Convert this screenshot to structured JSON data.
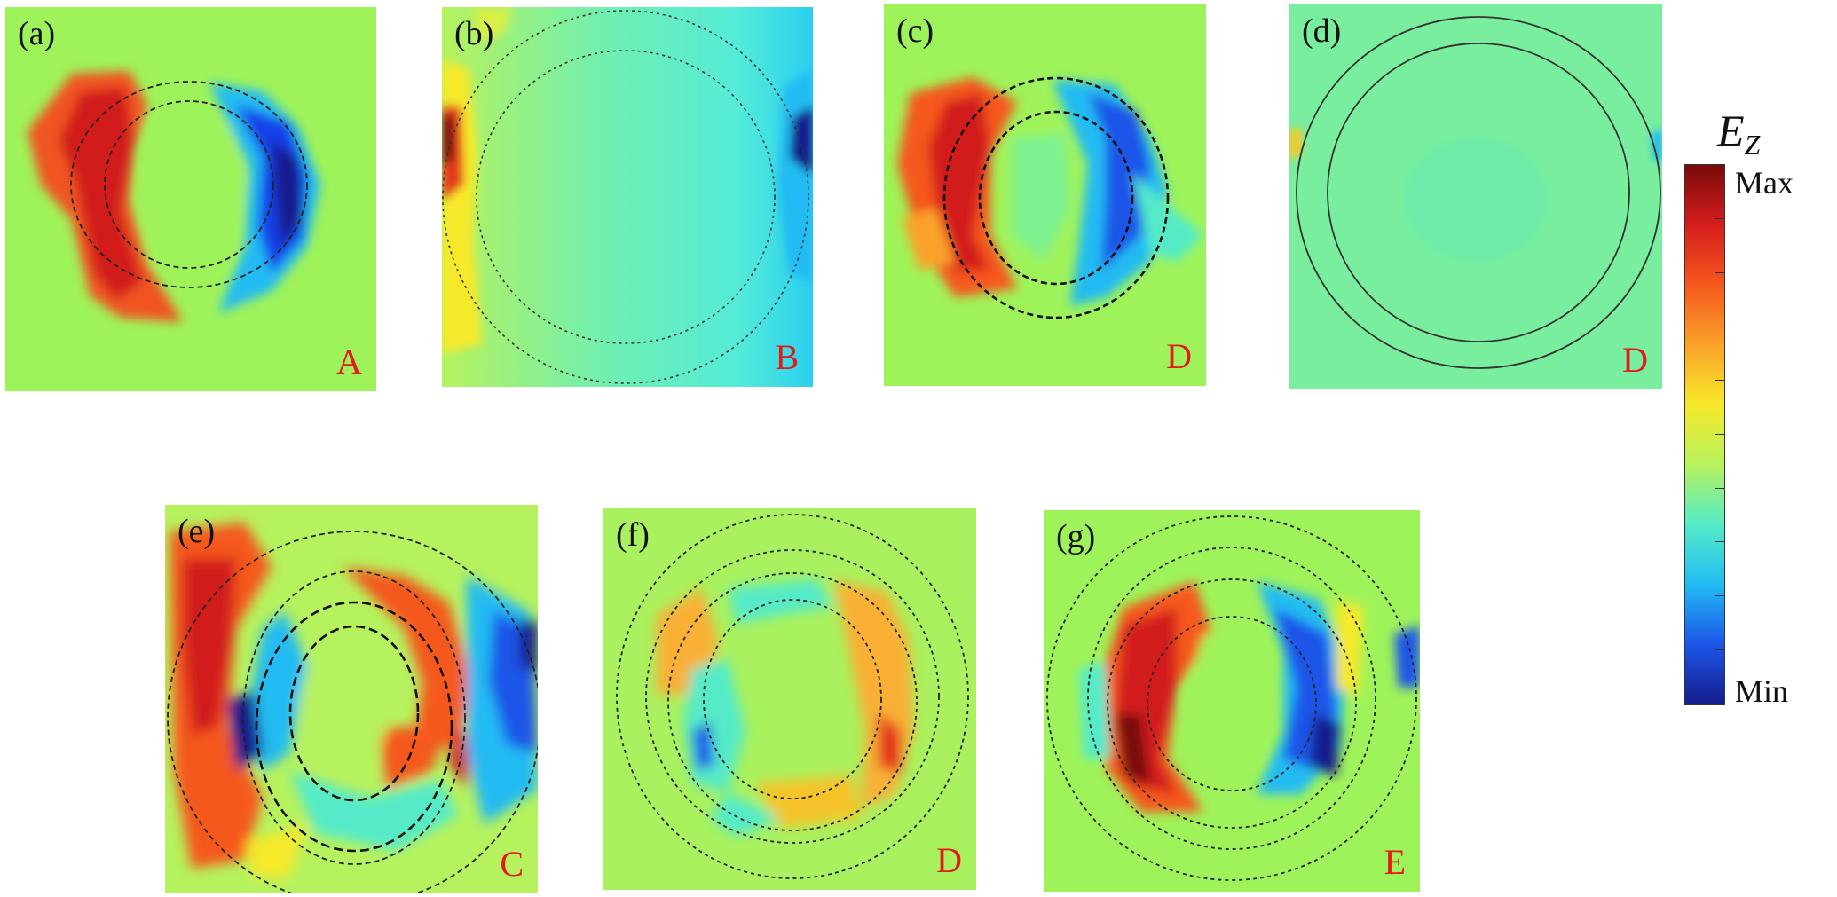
{
  "figure": {
    "panels": [
      {
        "id": "pa",
        "label": "(a)",
        "corner_label": "A"
      },
      {
        "id": "pb",
        "label": "(b)",
        "corner_label": "B"
      },
      {
        "id": "pc",
        "label": "(c)",
        "corner_label": "D"
      },
      {
        "id": "pd",
        "label": "(d)",
        "corner_label": "D"
      },
      {
        "id": "pe",
        "label": "(e)",
        "corner_label": "C"
      },
      {
        "id": "pf",
        "label": "(f)",
        "corner_label": "D"
      },
      {
        "id": "pg",
        "label": "(g)",
        "corner_label": "E"
      }
    ],
    "colorbar": {
      "title": "E",
      "title_subscript": "Z",
      "max_label": "Max",
      "min_label": "Min",
      "colormap": "jet",
      "colors": [
        "#7a0a0a",
        "#d61d1d",
        "#f5581e",
        "#fba22a",
        "#f6e92a",
        "#b6f25e",
        "#54ebc8",
        "#22bbf3",
        "#1c55e8",
        "#151c8c"
      ]
    },
    "background_color": "#9ff35a",
    "corner_label_color": "#e21a1a"
  }
}
